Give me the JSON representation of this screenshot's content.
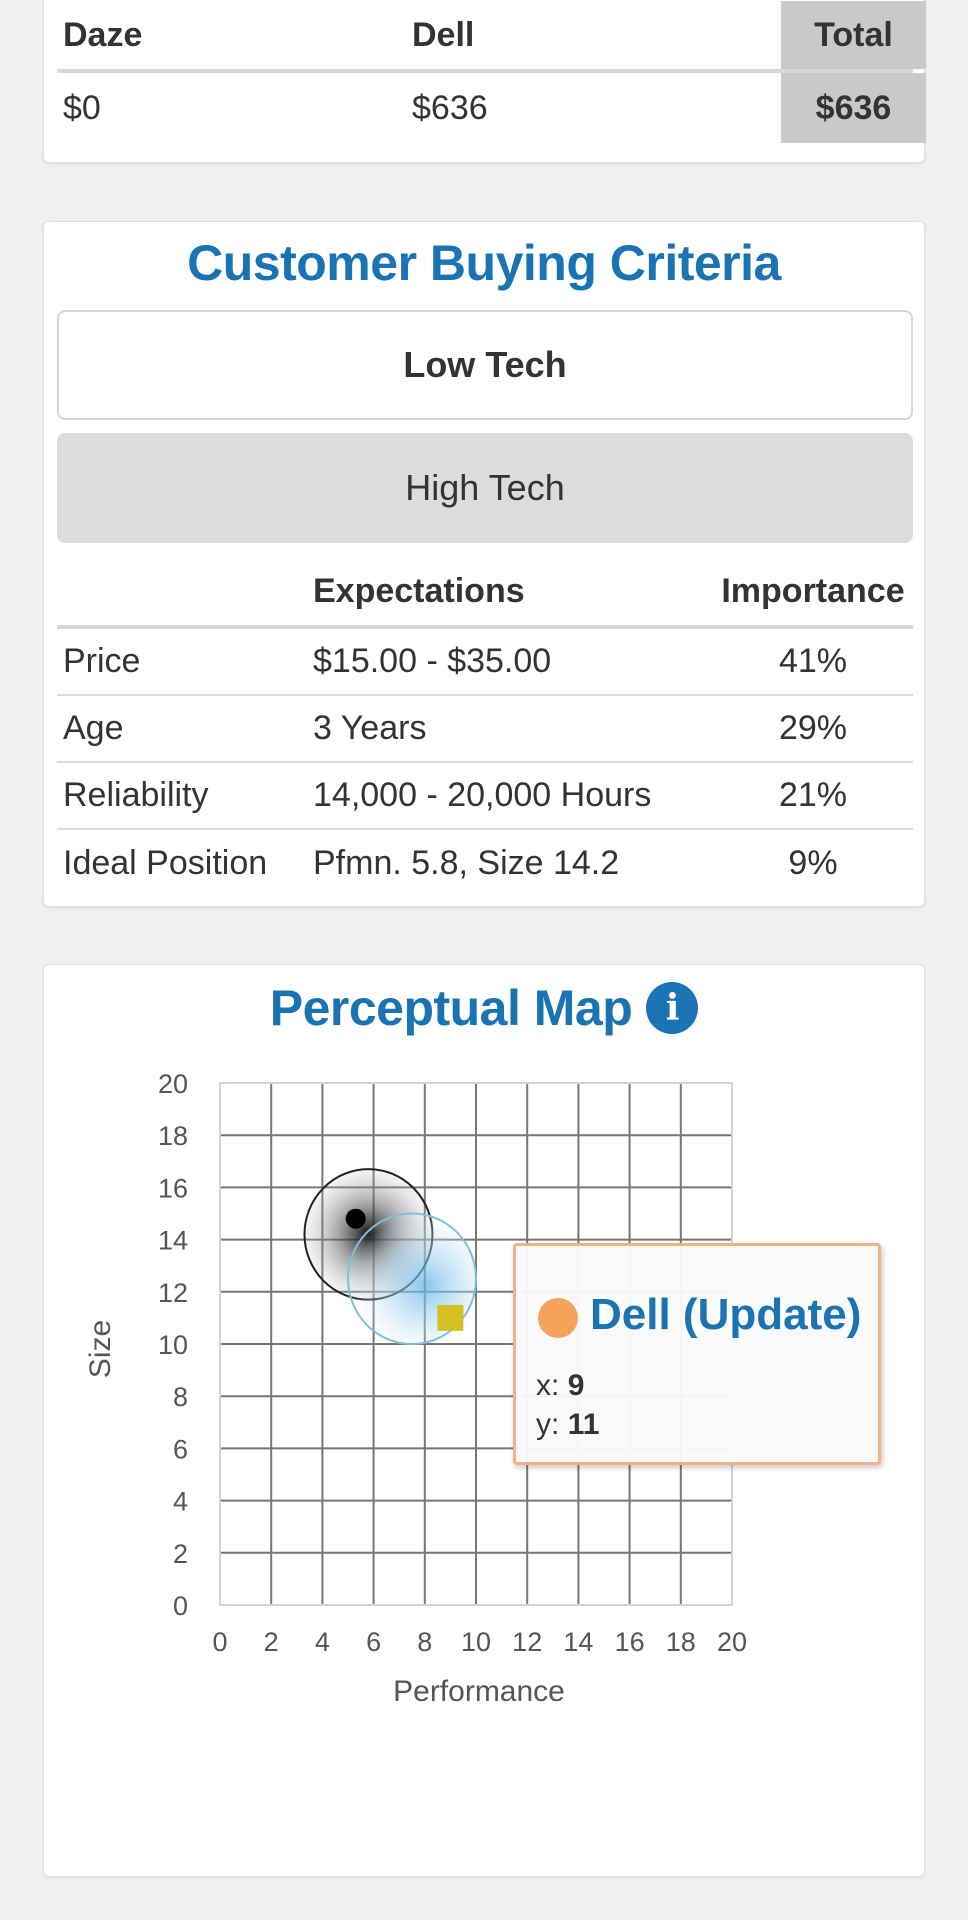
{
  "top_table": {
    "headers": [
      "Daze",
      "Dell",
      "Total"
    ],
    "values": [
      "$0",
      "$636",
      "$636"
    ]
  },
  "buying_criteria": {
    "title": "Customer Buying Criteria",
    "segments": [
      "Low Tech",
      "High Tech"
    ],
    "selected_segment": "High Tech",
    "columns": [
      "",
      "Expectations",
      "Importance"
    ],
    "rows": [
      {
        "criterion": "Price",
        "expectation": "$15.00 - $35.00",
        "importance": "41%"
      },
      {
        "criterion": "Age",
        "expectation": "3 Years",
        "importance": "29%"
      },
      {
        "criterion": "Reliability",
        "expectation": "14,000 - 20,000 Hours",
        "importance": "21%"
      },
      {
        "criterion": "Ideal Position",
        "expectation": "Pfmn. 5.8, Size 14.2",
        "importance": "9%"
      }
    ]
  },
  "perceptual_map": {
    "title": "Perceptual Map",
    "info_icon": "info-icon",
    "tooltip": {
      "name": "Dell (Update)",
      "x_label": "x:",
      "x_value": "9",
      "y_label": "y:",
      "y_value": "11",
      "dot_color": "#f5a35c"
    }
  },
  "chart_data": {
    "type": "scatter",
    "xlabel": "Performance",
    "ylabel": "Size",
    "xlim": [
      0,
      20
    ],
    "ylim": [
      0,
      20
    ],
    "xticks": [
      0,
      2,
      4,
      6,
      8,
      10,
      12,
      14,
      16,
      18,
      20
    ],
    "yticks": [
      0,
      2,
      4,
      6,
      8,
      10,
      12,
      14,
      16,
      18,
      20
    ],
    "grid": true,
    "segments": [
      {
        "center": [
          5.8,
          14.2
        ],
        "radius": 2.5,
        "color": "#222222"
      },
      {
        "center": [
          7.5,
          12.5
        ],
        "radius": 2.5,
        "color": "#6fb6dc"
      }
    ],
    "points": [
      {
        "x": 5.3,
        "y": 14.8,
        "color": "#000000",
        "shape": "circle"
      },
      {
        "x": 9,
        "y": 11,
        "color": "#d4c020",
        "shape": "square"
      }
    ]
  }
}
